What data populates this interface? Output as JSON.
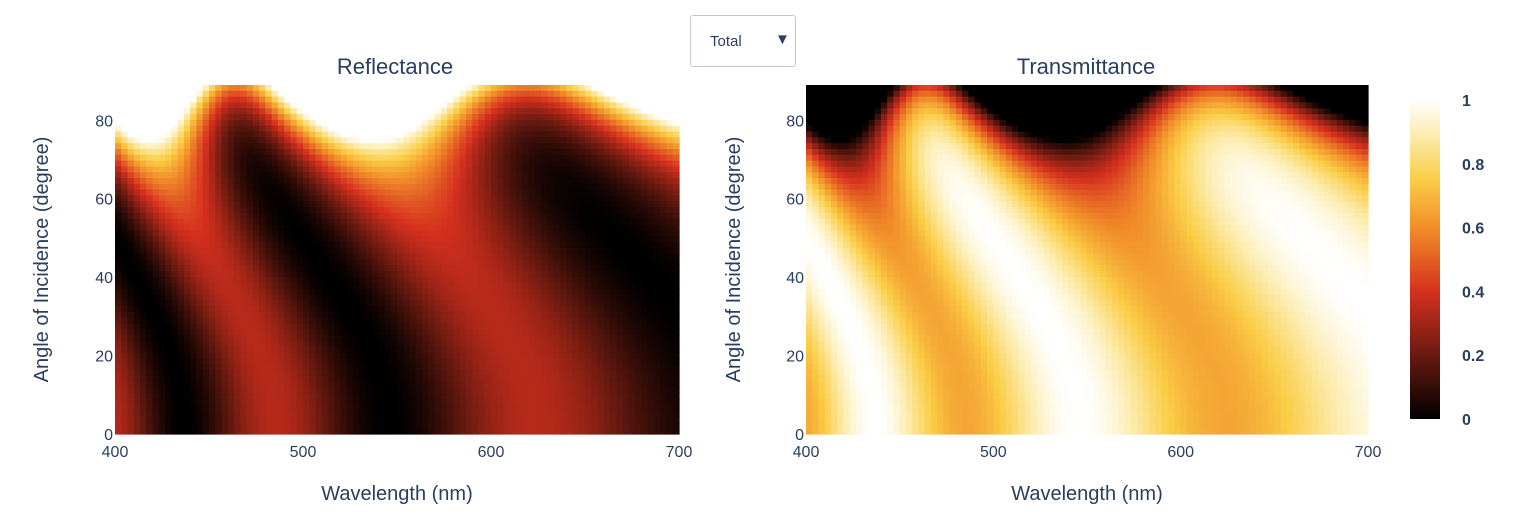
{
  "dropdown": {
    "label": "Total",
    "arrow": "▼"
  },
  "chart_data": [
    {
      "type": "heatmap",
      "title": "Reflectance",
      "xlabel": "Wavelength (nm)",
      "ylabel": "Angle of Incidence (degree)",
      "xlim": [
        400,
        700
      ],
      "ylim": [
        0,
        89
      ],
      "xticks": [
        "400",
        "500",
        "600",
        "700"
      ],
      "yticks": [
        "0",
        "20",
        "40",
        "60",
        "80"
      ],
      "xtick_values": [
        400,
        500,
        600,
        700
      ],
      "ytick_values": [
        0,
        20,
        40,
        60,
        80
      ],
      "z_range": [
        0,
        1
      ],
      "description_of_pattern": "thin-film interference fringes; reflectance peaks near ~0.35 at normal incidence, rising to ~1 near 89 degrees"
    },
    {
      "type": "heatmap",
      "title": "Transmittance",
      "xlabel": "Wavelength (nm)",
      "ylabel": "Angle of Incidence (degree)",
      "xlim": [
        400,
        700
      ],
      "ylim": [
        0,
        89
      ],
      "xticks": [
        "400",
        "500",
        "600",
        "700"
      ],
      "yticks": [
        "0",
        "20",
        "40",
        "60",
        "80"
      ],
      "xtick_values": [
        400,
        500,
        600,
        700
      ],
      "ytick_values": [
        0,
        20,
        40,
        60,
        80
      ],
      "z_range": [
        0,
        1
      ]
    }
  ],
  "colorbar": {
    "colorscale": "afmhot",
    "ticks": [
      "0",
      "0.2",
      "0.4",
      "0.6",
      "0.8",
      "1"
    ],
    "tick_values": [
      0,
      0.2,
      0.4,
      0.6,
      0.8,
      1
    ]
  }
}
